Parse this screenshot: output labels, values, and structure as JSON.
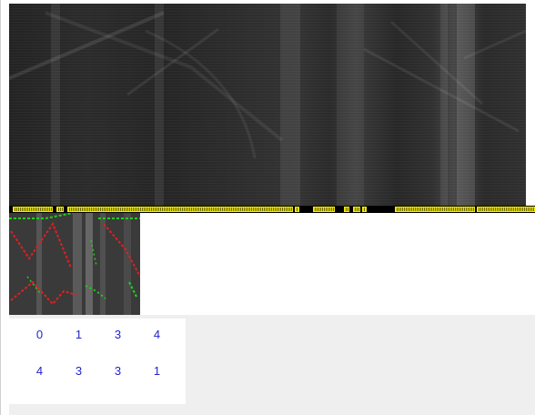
{
  "numbers": {
    "row1": [
      "0",
      "1",
      "3",
      "4"
    ],
    "row2": [
      "4",
      "3",
      "3",
      "1"
    ]
  },
  "colors": {
    "segment": "#e9e200",
    "track_background": "#000000",
    "trace_red": "#e02020",
    "trace_green": "#20d020",
    "number_text": "#2222cc",
    "panel_background": "#efefef"
  }
}
